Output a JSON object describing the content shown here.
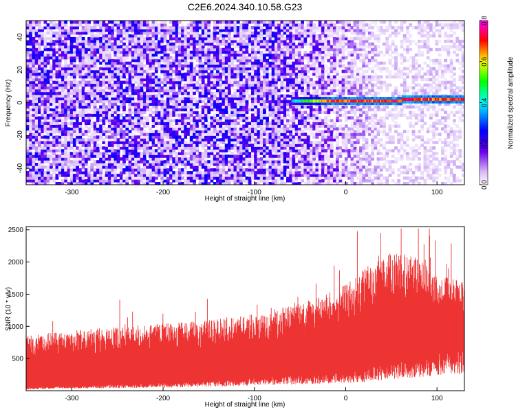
{
  "title": "C2E6.2024.340.10.58.G23",
  "chart_data": [
    {
      "type": "heatmap",
      "xlabel": "Height of straight line (km)",
      "ylabel": "Frequency (Hz)",
      "xlim": [
        -350,
        130
      ],
      "ylim": [
        -50,
        50
      ],
      "x_ticks": [
        -300,
        -200,
        -100,
        0,
        100
      ],
      "y_ticks": [
        -40,
        -20,
        0,
        20,
        40
      ],
      "colorbar": {
        "label": "Normalized spectral amplitude",
        "range": [
          0,
          0.8
        ],
        "ticks": [
          0.0,
          0.2,
          0.4,
          0.6,
          0.8
        ],
        "colors": [
          "#ffffff",
          "#5500ee",
          "#0000ff",
          "#00ffff",
          "#00ff00",
          "#ffff00",
          "#ff0000",
          "#ff00ff"
        ]
      },
      "signal": {
        "description_values": "narrowband line near 0 Hz",
        "start_x": -60,
        "end_x": 130,
        "frequency": 1,
        "peak_amplitude": 0.75
      },
      "noise_amplitude": {
        "low_height": 0.2,
        "high_height": 0.05
      }
    },
    {
      "type": "line",
      "xlabel": "Height of straight line (km)",
      "ylabel": "SNR (10 * v/v)",
      "xlim": [
        -350,
        130
      ],
      "ylim": [
        0,
        2550
      ],
      "x_ticks": [
        -300,
        -200,
        -100,
        0,
        100
      ],
      "y_ticks": [
        500,
        1000,
        1500,
        2000,
        2500
      ],
      "series": [
        {
          "color": "#ee3333",
          "envelope_x": [
            -350,
            -300,
            -250,
            -200,
            -150,
            -100,
            -50,
            0,
            25,
            50,
            75,
            100,
            130
          ],
          "envelope_low": [
            50,
            80,
            100,
            120,
            150,
            200,
            250,
            300,
            350,
            450,
            500,
            600,
            650
          ],
          "envelope_high": [
            850,
            950,
            1000,
            1050,
            1100,
            1200,
            1350,
            1650,
            1950,
            2150,
            2100,
            1800,
            1700
          ],
          "peak_max": 2520
        }
      ]
    }
  ]
}
